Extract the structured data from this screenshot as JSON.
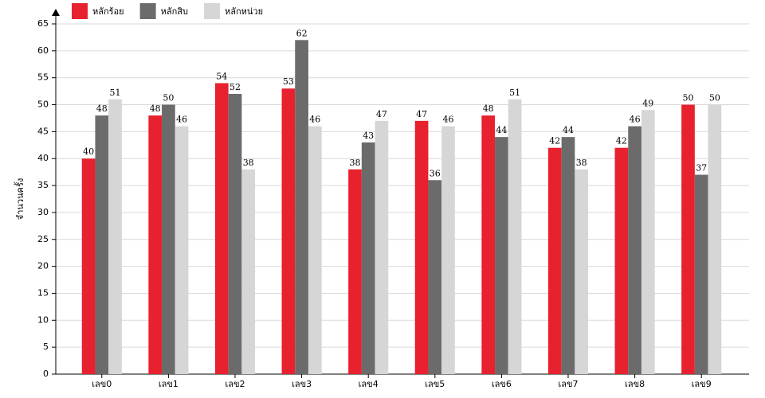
{
  "chart_data": {
    "type": "bar",
    "y_label": "จำนวนครั้ง",
    "categories": [
      "เลข0",
      "เลข1",
      "เลข2",
      "เลข3",
      "เลข4",
      "เลข5",
      "เลข6",
      "เลข7",
      "เลข8",
      "เลข9"
    ],
    "series": [
      {
        "name": "หลักร้อย",
        "color": "#e8212f",
        "values": [
          40,
          48,
          54,
          53,
          38,
          47,
          48,
          42,
          42,
          50
        ]
      },
      {
        "name": "หลักสิบ",
        "color": "#6b6b6b",
        "values": [
          48,
          50,
          52,
          62,
          43,
          36,
          44,
          44,
          46,
          37
        ]
      },
      {
        "name": "หลักหน่วย",
        "color": "#d6d6d6",
        "values": [
          51,
          46,
          38,
          46,
          47,
          46,
          51,
          38,
          49,
          50
        ]
      }
    ],
    "ylim": [
      0,
      65
    ],
    "yticks": [
      0,
      5,
      10,
      15,
      20,
      25,
      30,
      35,
      40,
      45,
      50,
      55,
      60,
      65
    ],
    "grid": true,
    "legend": "top-left"
  }
}
